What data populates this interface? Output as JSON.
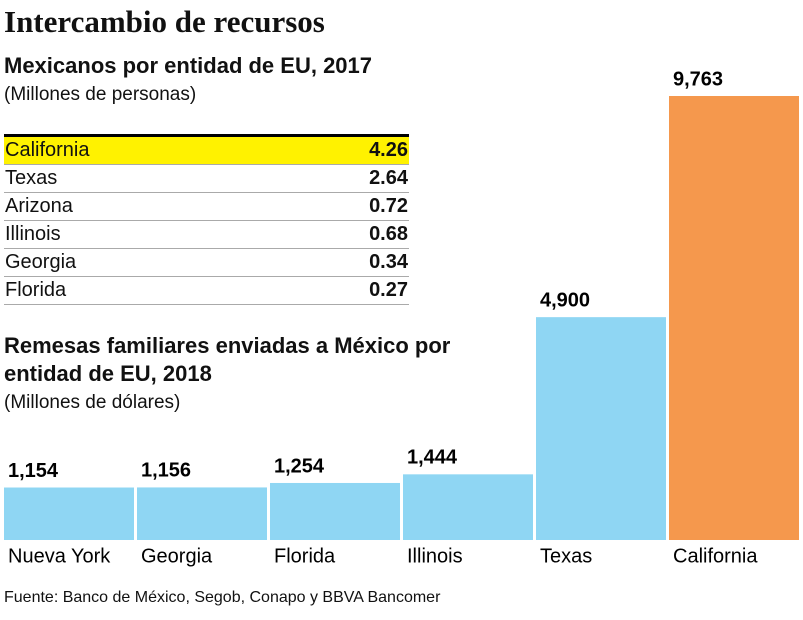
{
  "header": {
    "title": "Intercambio de recursos"
  },
  "table": {
    "title": "Mexicanos por entidad de EU, 2017",
    "subtitle": "(Millones de personas)",
    "rows": [
      [
        "California",
        4.26
      ],
      [
        "Texas",
        2.64
      ],
      [
        "Arizona",
        0.72
      ],
      [
        "Illinois",
        0.68
      ],
      [
        "Georgia",
        0.34
      ],
      [
        "Florida",
        0.27
      ]
    ]
  },
  "chart_data": {
    "type": "bar",
    "title": "Remesas familiares enviadas a México por entidad de EU, 2018",
    "subtitle": "(Millones de dólares)",
    "categories": [
      "Nueva York",
      "Georgia",
      "Florida",
      "Illinois",
      "Texas",
      "California"
    ],
    "values": [
      1154,
      1156,
      1254,
      1444,
      4900,
      9763
    ],
    "value_labels": [
      "1,154",
      "1,156",
      "1,254",
      "1,444",
      "4,900",
      "9,763"
    ],
    "colors": [
      "#8fd6f3",
      "#8fd6f3",
      "#8fd6f3",
      "#8fd6f3",
      "#8fd6f3",
      "#f5984d"
    ]
  },
  "source": "Fuente: Banco de México, Segob, Conapo y BBVA Bancomer"
}
